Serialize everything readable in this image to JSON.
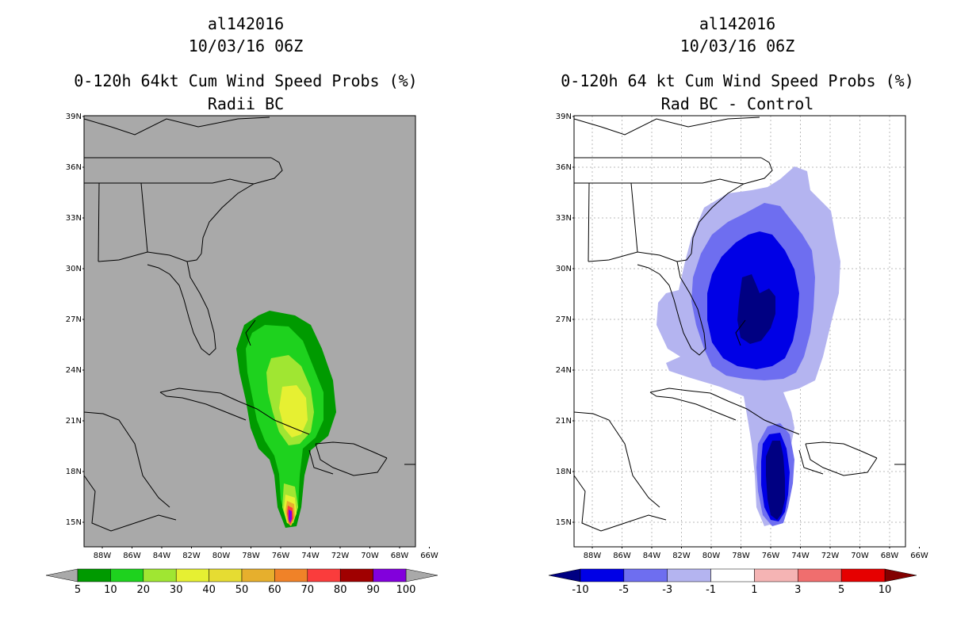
{
  "left": {
    "title1": "al142016",
    "title2": "10/03/16 06Z",
    "title3": "0-120h 64kt Cum Wind Speed Probs (%)",
    "title4": "Radii BC",
    "lat_labels": [
      "39N",
      "36N",
      "33N",
      "30N",
      "27N",
      "24N",
      "21N",
      "18N",
      "15N"
    ],
    "lon_labels": [
      "88W",
      "86W",
      "84W",
      "82W",
      "80W",
      "78W",
      "76W",
      "74W",
      "72W",
      "70W",
      "68W",
      "66W"
    ],
    "background": "#a9a9a9",
    "colorbar": {
      "colors": [
        "#009a00",
        "#1ed21e",
        "#a0e632",
        "#e6f032",
        "#e6dc32",
        "#e6af2d",
        "#f08228",
        "#fa3c3c",
        "#a00000",
        "#8200dc"
      ],
      "end_low": "#a9a9a9",
      "end_high": "#a9a9a9",
      "labels": [
        "5",
        "10",
        "20",
        "30",
        "40",
        "50",
        "60",
        "70",
        "80",
        "90",
        "100"
      ]
    }
  },
  "right": {
    "title1": "al142016",
    "title2": "10/03/16 06Z",
    "title3": "0-120h 64 kt Cum Wind Speed Probs (%)",
    "title4": "Rad BC - Control",
    "lat_labels": [
      "39N",
      "36N",
      "33N",
      "30N",
      "27N",
      "24N",
      "21N",
      "18N",
      "15N"
    ],
    "lon_labels": [
      "88W",
      "86W",
      "84W",
      "82W",
      "80W",
      "78W",
      "76W",
      "74W",
      "72W",
      "70W",
      "68W",
      "66W"
    ],
    "background": "#ffffff",
    "colorbar": {
      "colors": [
        "#0000e6",
        "#6e6ef0",
        "#b4b4f0",
        "#ffffff",
        "#f5b4b4",
        "#f06e6e",
        "#e60000"
      ],
      "end_low": "#000082",
      "end_high": "#820000",
      "labels": [
        "-10",
        "-5",
        "-3",
        "-1",
        "1",
        "3",
        "5",
        "10"
      ]
    }
  }
}
